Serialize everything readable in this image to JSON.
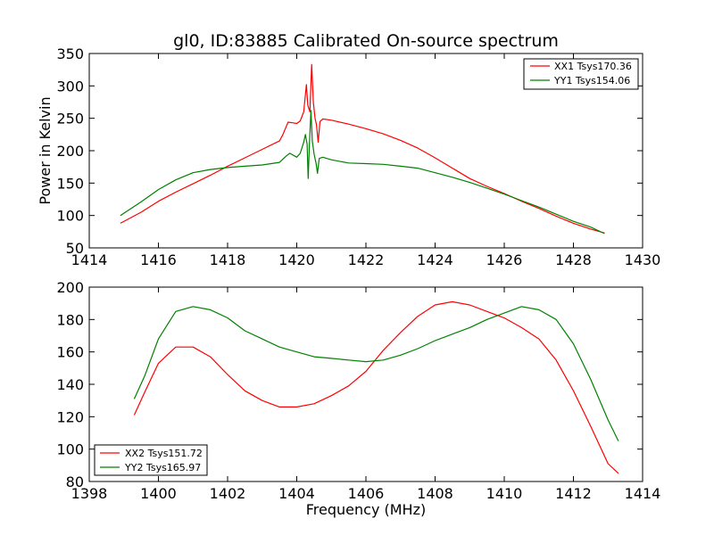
{
  "chart_data": [
    {
      "type": "line",
      "title": "gl0, ID:83885 Calibrated On-source spectrum",
      "xlabel": "",
      "ylabel": "Power in Kelvin",
      "xlim": [
        1414,
        1430
      ],
      "ylim": [
        50,
        350
      ],
      "xticks": [
        "1414",
        "1416",
        "1418",
        "1420",
        "1422",
        "1424",
        "1426",
        "1428",
        "1430"
      ],
      "yticks": [
        "50",
        "100",
        "150",
        "200",
        "250",
        "300",
        "350"
      ],
      "grid": false,
      "legend_position": "top-right",
      "series": [
        {
          "name": "XX1 Tsys170.36",
          "color": "#ff0000",
          "points": [
            [
              1414.9,
              88
            ],
            [
              1415.5,
              105
            ],
            [
              1416,
              122
            ],
            [
              1416.5,
              136
            ],
            [
              1417,
              149
            ],
            [
              1417.5,
              162
            ],
            [
              1418,
              176
            ],
            [
              1418.5,
              189
            ],
            [
              1419,
              202
            ],
            [
              1419.5,
              215
            ],
            [
              1419.6,
              225
            ],
            [
              1419.75,
              244
            ],
            [
              1419.9,
              243
            ],
            [
              1420.0,
              242
            ],
            [
              1420.1,
              246
            ],
            [
              1420.2,
              260
            ],
            [
              1420.28,
              302
            ],
            [
              1420.32,
              270
            ],
            [
              1420.38,
              260
            ],
            [
              1420.43,
              333
            ],
            [
              1420.48,
              275
            ],
            [
              1420.53,
              250
            ],
            [
              1420.57,
              240
            ],
            [
              1420.62,
              213
            ],
            [
              1420.67,
              245
            ],
            [
              1420.75,
              249
            ],
            [
              1421,
              247
            ],
            [
              1421.5,
              241
            ],
            [
              1422,
              234
            ],
            [
              1422.5,
              226
            ],
            [
              1423,
              216
            ],
            [
              1423.5,
              204
            ],
            [
              1424,
              189
            ],
            [
              1424.5,
              173
            ],
            [
              1425,
              157
            ],
            [
              1425.5,
              145
            ],
            [
              1426,
              134
            ],
            [
              1426.5,
              122
            ],
            [
              1427,
              111
            ],
            [
              1427.5,
              99
            ],
            [
              1428,
              88
            ],
            [
              1428.5,
              79
            ],
            [
              1428.9,
              73
            ]
          ]
        },
        {
          "name": "YY1 Tsys154.06",
          "color": "#008000",
          "points": [
            [
              1414.9,
              100
            ],
            [
              1415.5,
              121
            ],
            [
              1416,
              140
            ],
            [
              1416.5,
              155
            ],
            [
              1417,
              166
            ],
            [
              1417.5,
              171
            ],
            [
              1418,
              174
            ],
            [
              1418.5,
              176
            ],
            [
              1419,
              178
            ],
            [
              1419.5,
              182
            ],
            [
              1419.7,
              192
            ],
            [
              1419.8,
              196
            ],
            [
              1420.0,
              190
            ],
            [
              1420.1,
              196
            ],
            [
              1420.2,
              213
            ],
            [
              1420.25,
              225
            ],
            [
              1420.3,
              210
            ],
            [
              1420.33,
              157
            ],
            [
              1420.36,
              200
            ],
            [
              1420.41,
              262
            ],
            [
              1420.45,
              215
            ],
            [
              1420.5,
              195
            ],
            [
              1420.56,
              180
            ],
            [
              1420.6,
              165
            ],
            [
              1420.65,
              188
            ],
            [
              1420.75,
              190
            ],
            [
              1421,
              186
            ],
            [
              1421.5,
              181
            ],
            [
              1422,
              180
            ],
            [
              1422.5,
              179
            ],
            [
              1423,
              176
            ],
            [
              1423.5,
              173
            ],
            [
              1424,
              166
            ],
            [
              1424.5,
              159
            ],
            [
              1425,
              151
            ],
            [
              1425.5,
              142
            ],
            [
              1426,
              133
            ],
            [
              1426.5,
              123
            ],
            [
              1427,
              113
            ],
            [
              1427.5,
              102
            ],
            [
              1428,
              91
            ],
            [
              1428.5,
              82
            ],
            [
              1428.9,
              72
            ]
          ]
        }
      ]
    },
    {
      "type": "line",
      "title": "",
      "xlabel": "Frequency (MHz)",
      "ylabel": "",
      "xlim": [
        1398,
        1414
      ],
      "ylim": [
        80,
        200
      ],
      "xticks": [
        "1398",
        "1400",
        "1402",
        "1404",
        "1406",
        "1408",
        "1410",
        "1412",
        "1414"
      ],
      "yticks": [
        "80",
        "100",
        "120",
        "140",
        "160",
        "180",
        "200"
      ],
      "grid": false,
      "legend_position": "bottom-left",
      "series": [
        {
          "name": "XX2 Tsys151.72",
          "color": "#ff0000",
          "points": [
            [
              1399.3,
              121
            ],
            [
              1399.6,
              135
            ],
            [
              1400,
              153
            ],
            [
              1400.5,
              163
            ],
            [
              1401,
              163
            ],
            [
              1401.5,
              157
            ],
            [
              1402,
              146
            ],
            [
              1402.5,
              136
            ],
            [
              1403,
              130
            ],
            [
              1403.5,
              126
            ],
            [
              1404,
              126
            ],
            [
              1404.5,
              128
            ],
            [
              1405,
              133
            ],
            [
              1405.5,
              139
            ],
            [
              1406,
              148
            ],
            [
              1406.5,
              161
            ],
            [
              1407,
              172
            ],
            [
              1407.5,
              182
            ],
            [
              1408,
              189
            ],
            [
              1408.5,
              191
            ],
            [
              1409,
              189
            ],
            [
              1409.5,
              185
            ],
            [
              1410,
              181
            ],
            [
              1410.5,
              175
            ],
            [
              1411,
              168
            ],
            [
              1411.5,
              155
            ],
            [
              1412,
              136
            ],
            [
              1412.5,
              114
            ],
            [
              1413,
              91
            ],
            [
              1413.3,
              85
            ]
          ]
        },
        {
          "name": "YY2 Tsys165.97",
          "color": "#008000",
          "points": [
            [
              1399.3,
              131
            ],
            [
              1399.6,
              145
            ],
            [
              1400,
              168
            ],
            [
              1400.5,
              185
            ],
            [
              1401,
              188
            ],
            [
              1401.5,
              186
            ],
            [
              1402,
              181
            ],
            [
              1402.5,
              173
            ],
            [
              1403,
              168
            ],
            [
              1403.5,
              163
            ],
            [
              1404,
              160
            ],
            [
              1404.5,
              157
            ],
            [
              1405,
              156
            ],
            [
              1405.5,
              155
            ],
            [
              1406,
              154
            ],
            [
              1406.5,
              155
            ],
            [
              1407,
              158
            ],
            [
              1407.5,
              162
            ],
            [
              1408,
              167
            ],
            [
              1408.5,
              171
            ],
            [
              1409,
              175
            ],
            [
              1409.5,
              180
            ],
            [
              1410,
              184
            ],
            [
              1410.5,
              188
            ],
            [
              1411,
              186
            ],
            [
              1411.5,
              180
            ],
            [
              1412,
              165
            ],
            [
              1412.5,
              143
            ],
            [
              1413,
              118
            ],
            [
              1413.3,
              105
            ]
          ]
        }
      ]
    }
  ]
}
